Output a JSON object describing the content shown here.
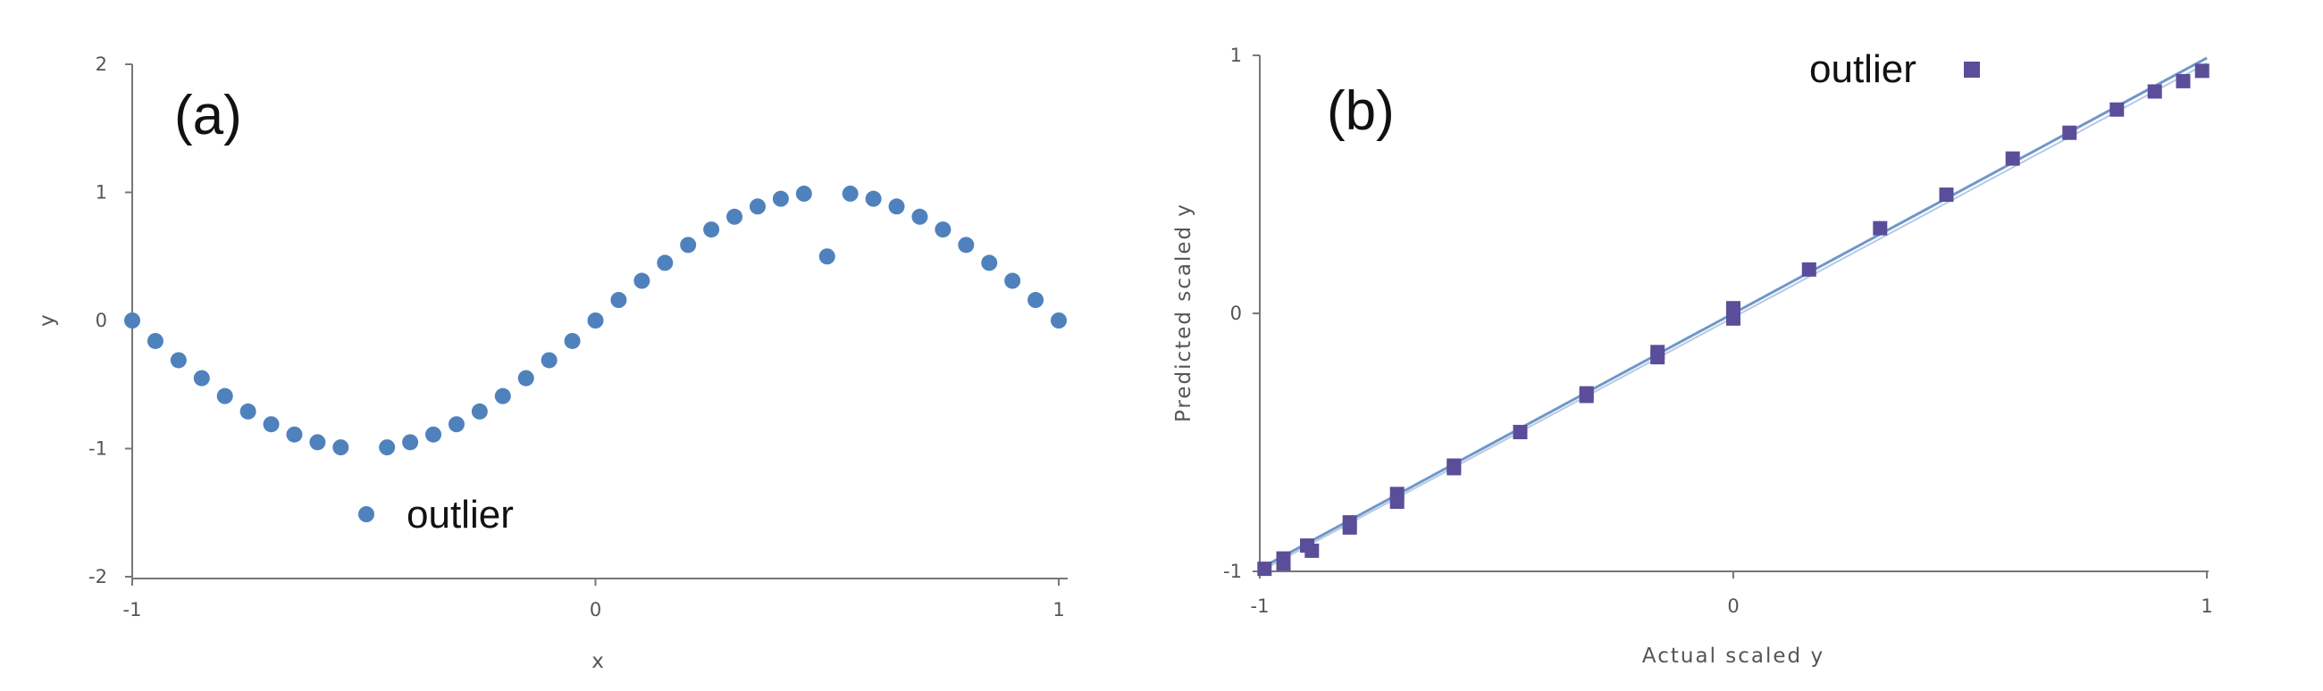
{
  "colors": {
    "series_a": "#4f81bd",
    "series_b": "#5a4e9a",
    "fit_b": "#6f97c9",
    "axis": "#777777",
    "text": "#111111"
  },
  "chart_data": [
    {
      "type": "scatter",
      "panel_label": "(a)",
      "xlabel": "x",
      "ylabel": "y",
      "xlim": [
        -1,
        1
      ],
      "ylim": [
        -2,
        2
      ],
      "x_ticks": [
        "-1",
        "0",
        "1"
      ],
      "y_ticks": [
        "2",
        "1",
        "0",
        "-1",
        "-2"
      ],
      "grid": false,
      "legend": {
        "label": "outlier",
        "placement": "bottom-left"
      },
      "series": [
        {
          "x": [
            -1.0,
            -0.95,
            -0.9,
            -0.85,
            -0.8,
            -0.75,
            -0.7,
            -0.65,
            -0.6,
            -0.55,
            -0.45,
            -0.4,
            -0.35,
            -0.3,
            -0.25,
            -0.2,
            -0.15,
            -0.1,
            -0.05,
            0.0,
            0.05,
            0.1,
            0.15,
            0.2,
            0.25,
            0.3,
            0.35,
            0.4,
            0.45,
            0.5,
            0.55,
            0.6,
            0.65,
            0.7,
            0.75,
            0.8,
            0.85,
            0.9,
            0.95,
            1.0
          ],
          "y": [
            0.0,
            -0.16,
            -0.31,
            -0.45,
            -0.59,
            -0.71,
            -0.81,
            -0.89,
            -0.95,
            -0.99,
            -0.99,
            -0.95,
            -0.89,
            -0.81,
            -0.71,
            -0.59,
            -0.45,
            -0.31,
            -0.16,
            0.0,
            0.16,
            0.31,
            0.45,
            0.59,
            0.71,
            0.81,
            0.89,
            0.95,
            0.99,
            0.5,
            0.99,
            0.95,
            0.89,
            0.81,
            0.71,
            0.59,
            0.45,
            0.31,
            0.16,
            0.0
          ]
        }
      ]
    },
    {
      "type": "scatter",
      "panel_label": "(b)",
      "xlabel": "Actual scaled y",
      "ylabel": "Predicted scaled y",
      "xlim": [
        -1,
        1
      ],
      "ylim": [
        -1,
        1
      ],
      "x_ticks": [
        "-1",
        "0",
        "1"
      ],
      "y_ticks": [
        "1",
        "0",
        "-1"
      ],
      "grid": false,
      "legend": {
        "label": "outlier",
        "placement": "top-right"
      },
      "fit_line": {
        "x": [
          -1,
          1
        ],
        "y": [
          -0.99,
          0.99
        ]
      },
      "series": [
        {
          "x": [
            -0.95,
            -0.9,
            -0.81,
            -0.71,
            -0.59,
            -0.45,
            -0.31,
            -0.16,
            0.0,
            0.16,
            0.31,
            0.45,
            0.59,
            0.71,
            0.81,
            0.89,
            0.95,
            0.99,
            -0.99,
            -0.95,
            -0.89,
            -0.81,
            -0.71,
            -0.59,
            -0.45,
            -0.31,
            -0.16,
            0.0
          ],
          "y": [
            -0.95,
            -0.9,
            -0.81,
            -0.7,
            -0.6,
            -0.46,
            -0.31,
            -0.15,
            0.02,
            0.17,
            0.33,
            0.46,
            0.6,
            0.7,
            0.79,
            0.86,
            0.9,
            0.94,
            -0.99,
            -0.97,
            -0.92,
            -0.83,
            -0.73,
            -0.59,
            -0.46,
            -0.32,
            -0.17,
            -0.02
          ]
        }
      ]
    }
  ]
}
